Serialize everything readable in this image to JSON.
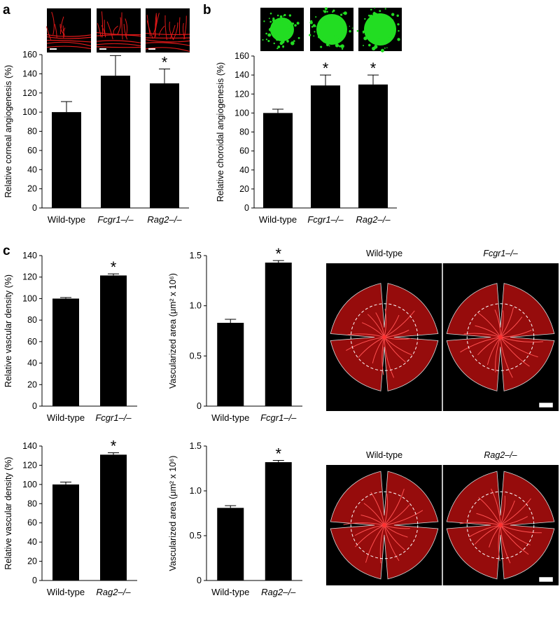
{
  "panel_letters": [
    "a",
    "b",
    "c"
  ],
  "chart_data": [
    {
      "id": "a",
      "type": "bar",
      "ylabel": "Relative corneal angiogenesis (%)",
      "categories": [
        "Wild-type",
        "Fcgr1–/–",
        "Rag2–/–"
      ],
      "italic": [
        false,
        true,
        true
      ],
      "values": [
        100,
        138,
        130
      ],
      "errors": [
        11,
        21,
        15
      ],
      "significant": [
        false,
        true,
        true
      ],
      "ylim": [
        0,
        160
      ],
      "yticks": [
        "0",
        "20",
        "40",
        "60",
        "80",
        "100",
        "120",
        "140",
        "160"
      ],
      "thumbnails": "corneal",
      "color": "#000000"
    },
    {
      "id": "b",
      "type": "bar",
      "ylabel": "Relative choroidal angiogenesis (%)",
      "categories": [
        "Wild-type",
        "Fcgr1–/–",
        "Rag2–/–"
      ],
      "italic": [
        false,
        true,
        true
      ],
      "values": [
        100,
        129,
        130
      ],
      "errors": [
        4,
        11,
        10
      ],
      "significant": [
        false,
        true,
        true
      ],
      "ylim": [
        0,
        160
      ],
      "yticks": [
        "0",
        "20",
        "40",
        "60",
        "80",
        "100",
        "120",
        "140",
        "160"
      ],
      "thumbnails": "choroidal",
      "color": "#000000"
    },
    {
      "id": "c1",
      "type": "bar",
      "ylabel": "Relative vascular density (%)",
      "categories": [
        "Wild-type",
        "Fcgr1–/–"
      ],
      "italic": [
        false,
        true
      ],
      "values": [
        100,
        121.5
      ],
      "errors": [
        1,
        1.5
      ],
      "significant": [
        false,
        true
      ],
      "ylim": [
        0,
        140
      ],
      "yticks": [
        "0",
        "20",
        "40",
        "60",
        "80",
        "100",
        "120",
        "140"
      ],
      "color": "#000000"
    },
    {
      "id": "c2",
      "type": "bar",
      "ylabel": "Vascularized area (μm² x 10⁶)",
      "categories": [
        "Wild-type",
        "Fcgr1–/–"
      ],
      "italic": [
        false,
        true
      ],
      "values": [
        0.83,
        1.43
      ],
      "errors": [
        0.035,
        0.02
      ],
      "significant": [
        false,
        true
      ],
      "ylim": [
        0,
        1.5
      ],
      "yticks": [
        "0",
        "0.5",
        "1.0",
        "1.5"
      ],
      "ytick_values": [
        0,
        0.5,
        1.0,
        1.5
      ],
      "color": "#000000"
    },
    {
      "id": "c3",
      "type": "bar",
      "ylabel": "Relative vascular density (%)",
      "categories": [
        "Wild-type",
        "Rag2–/–"
      ],
      "italic": [
        false,
        true
      ],
      "values": [
        100,
        131
      ],
      "errors": [
        2.5,
        2
      ],
      "significant": [
        false,
        true
      ],
      "ylim": [
        0,
        140
      ],
      "yticks": [
        "0",
        "20",
        "40",
        "60",
        "80",
        "100",
        "120",
        "140"
      ],
      "color": "#000000"
    },
    {
      "id": "c4",
      "type": "bar",
      "ylabel": "Vascularized area (μm² x 10⁶)",
      "categories": [
        "Wild-type",
        "Rag2–/–"
      ],
      "italic": [
        false,
        true
      ],
      "values": [
        0.81,
        1.32
      ],
      "errors": [
        0.025,
        0.02
      ],
      "significant": [
        false,
        true
      ],
      "ylim": [
        0,
        1.5
      ],
      "yticks": [
        "0",
        "0.5",
        "1.0",
        "1.5"
      ],
      "ytick_values": [
        0,
        0.5,
        1.0,
        1.5
      ],
      "color": "#000000"
    }
  ],
  "significance_marker": "*",
  "retina_photos": [
    {
      "labels": [
        "Wild-type",
        "Fcgr1–/–"
      ],
      "italic": [
        false,
        true
      ]
    },
    {
      "labels": [
        "Wild-type",
        "Rag2–/–"
      ],
      "italic": [
        false,
        true
      ]
    }
  ],
  "colors": {
    "vessel_red": "#e01818",
    "choroid_green": "#22dd22",
    "photo_background": "#000000",
    "retina_red": "#c81010"
  }
}
